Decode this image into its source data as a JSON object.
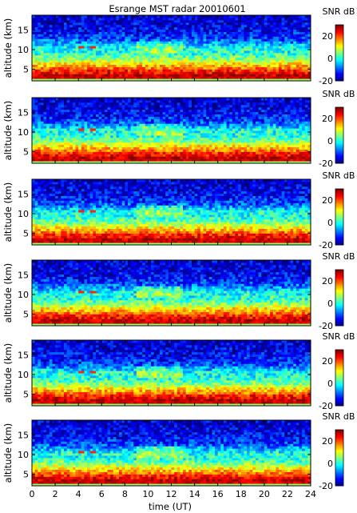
{
  "chart_data": {
    "type": "heatmap",
    "title": "Esrange MST radar 20010601",
    "xlabel": "time (UT)",
    "ylabel": "altitude (km)",
    "xlim": [
      0,
      24
    ],
    "ylim": [
      2,
      18.8
    ],
    "x_ticks": [
      0,
      2,
      4,
      6,
      8,
      10,
      12,
      14,
      16,
      18,
      20,
      22,
      24
    ],
    "y_ticks": [
      5,
      10,
      15
    ],
    "colorbar": {
      "label": "SNR dB",
      "range": [
        -20,
        30
      ],
      "ticks": [
        -20,
        0,
        20
      ],
      "colormap": "jet"
    },
    "panel_count": 6,
    "time_step_h": 0.25,
    "altitude_step_km": 0.6,
    "profile_by_altitude_km": [
      {
        "altitude": 2.3,
        "snr_db": 8
      },
      {
        "altitude": 2.9,
        "snr_db": 26
      },
      {
        "altitude": 3.5,
        "snr_db": 27
      },
      {
        "altitude": 4.1,
        "snr_db": 24
      },
      {
        "altitude": 4.7,
        "snr_db": 22
      },
      {
        "altitude": 5.3,
        "snr_db": 18
      },
      {
        "altitude": 5.9,
        "snr_db": 15
      },
      {
        "altitude": 6.5,
        "snr_db": 12
      },
      {
        "altitude": 7.1,
        "snr_db": 9
      },
      {
        "altitude": 7.7,
        "snr_db": 5
      },
      {
        "altitude": 8.3,
        "snr_db": 3
      },
      {
        "altitude": 8.9,
        "snr_db": 1
      },
      {
        "altitude": 9.5,
        "snr_db": 0
      },
      {
        "altitude": 10.1,
        "snr_db": 0
      },
      {
        "altitude": 10.7,
        "snr_db": -1
      },
      {
        "altitude": 11.3,
        "snr_db": -4
      },
      {
        "altitude": 11.9,
        "snr_db": -7
      },
      {
        "altitude": 12.5,
        "snr_db": -9
      },
      {
        "altitude": 13.1,
        "snr_db": -11
      },
      {
        "altitude": 13.7,
        "snr_db": -12
      },
      {
        "altitude": 14.3,
        "snr_db": -13
      },
      {
        "altitude": 14.9,
        "snr_db": -14
      },
      {
        "altitude": 15.5,
        "snr_db": -14
      },
      {
        "altitude": 16.1,
        "snr_db": -15
      },
      {
        "altitude": 16.7,
        "snr_db": -15
      },
      {
        "altitude": 17.3,
        "snr_db": -16
      },
      {
        "altitude": 17.9,
        "snr_db": -16
      },
      {
        "altitude": 18.5,
        "snr_db": -16
      }
    ],
    "features": {
      "bright_spot_times_h": [
        4.3,
        5.2
      ],
      "bright_spot_altitude_km": 10.5,
      "tropopause_enhancement_times_h": [
        9,
        13
      ],
      "tropopause_enhancement_db": 6
    }
  }
}
